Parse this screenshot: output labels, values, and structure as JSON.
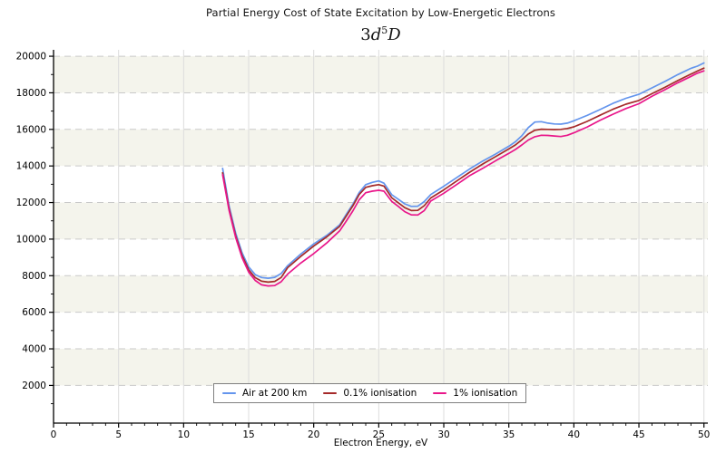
{
  "chart_data": {
    "type": "line",
    "title": "Partial Energy Cost of State Excitation by Low-Energetic Electrons",
    "subtitle": {
      "coeff": "3",
      "orbital": "d",
      "sup": "5",
      "term": "D"
    },
    "xlabel": "Electron Energy, eV",
    "ylabel": "",
    "xlim": [
      0,
      50.3
    ],
    "ylim": [
      -60,
      20350
    ],
    "x_major_ticks": [
      0,
      5,
      10,
      15,
      20,
      25,
      30,
      35,
      40,
      45,
      50
    ],
    "x_minor_step": 1,
    "y_major_ticks": [
      2000,
      4000,
      6000,
      8000,
      10000,
      12000,
      14000,
      16000,
      18000,
      20000
    ],
    "y_minor_step": 1000,
    "grid": {
      "vertical": "solid",
      "horizontal": "dashed"
    },
    "band_ranges": [
      [
        2000,
        4000
      ],
      [
        6000,
        8000
      ],
      [
        10000,
        12000
      ],
      [
        14000,
        16000
      ],
      [
        18000,
        20000
      ]
    ],
    "legend_position": "bottom-center",
    "colors": {
      "band": "#f4f4ec",
      "grid_vertical": "#dcdcdc",
      "grid_horizontal": "#c9c9c9",
      "spine": "#000000",
      "air": "#6495ed",
      "ion01": "#a52a2a",
      "ion1": "#e9168a"
    },
    "x": [
      13,
      13.5,
      14,
      14.5,
      15,
      15.5,
      16,
      16.5,
      17,
      17.5,
      18,
      19,
      20,
      21,
      22,
      22.5,
      23,
      23.5,
      24,
      24.5,
      25,
      25.4,
      26,
      26.5,
      27,
      27.5,
      28,
      28.5,
      29,
      30,
      31,
      32,
      33,
      34,
      35,
      35.5,
      36,
      36.5,
      37,
      37.5,
      38,
      38.5,
      39,
      39.5,
      40,
      41,
      42,
      43,
      44,
      45,
      46,
      47,
      48,
      49,
      49.5,
      50
    ],
    "series": [
      {
        "name": "Air at 200 km",
        "color": "#6495ed",
        "values": [
          13870,
          11800,
          10330,
          9250,
          8480,
          8060,
          7900,
          7860,
          7910,
          8120,
          8550,
          9180,
          9740,
          10200,
          10780,
          11350,
          11900,
          12550,
          12980,
          13100,
          13180,
          13060,
          12430,
          12180,
          11930,
          11790,
          11800,
          12050,
          12440,
          12890,
          13370,
          13840,
          14270,
          14660,
          15080,
          15320,
          15650,
          16100,
          16400,
          16420,
          16340,
          16300,
          16290,
          16340,
          16470,
          16760,
          17080,
          17420,
          17700,
          17920,
          18270,
          18620,
          19000,
          19340,
          19460,
          19630
        ]
      },
      {
        "name": "0.1% ionisation",
        "color": "#a52a2a",
        "values": [
          13630,
          11650,
          10180,
          9100,
          8330,
          7890,
          7700,
          7650,
          7690,
          7900,
          8440,
          9050,
          9620,
          10120,
          10700,
          11260,
          11810,
          12440,
          12830,
          12920,
          12980,
          12900,
          12260,
          11990,
          11720,
          11560,
          11570,
          11830,
          12250,
          12690,
          13180,
          13660,
          14110,
          14520,
          14930,
          15150,
          15430,
          15750,
          15950,
          16010,
          16000,
          15990,
          16000,
          16050,
          16140,
          16430,
          16770,
          17100,
          17380,
          17580,
          17950,
          18300,
          18670,
          19020,
          19190,
          19350
        ]
      },
      {
        "name": "1% ionisation",
        "color": "#e9168a",
        "values": [
          13520,
          11550,
          10080,
          8980,
          8200,
          7740,
          7500,
          7440,
          7460,
          7670,
          8090,
          8690,
          9210,
          9790,
          10450,
          10980,
          11530,
          12150,
          12540,
          12620,
          12670,
          12620,
          12060,
          11790,
          11500,
          11330,
          11320,
          11560,
          12080,
          12510,
          12990,
          13480,
          13870,
          14290,
          14690,
          14900,
          15150,
          15420,
          15600,
          15680,
          15670,
          15640,
          15610,
          15680,
          15810,
          16120,
          16490,
          16830,
          17140,
          17400,
          17810,
          18170,
          18550,
          18900,
          19070,
          19200
        ]
      }
    ]
  }
}
